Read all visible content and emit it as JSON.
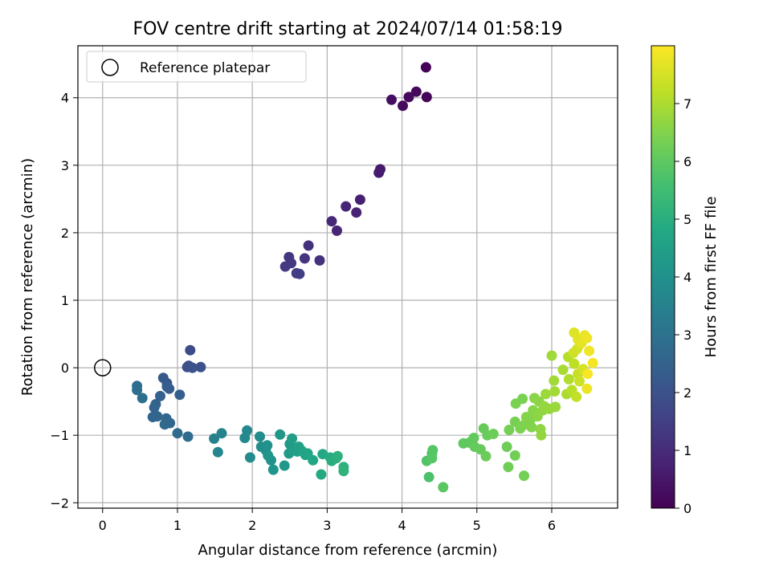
{
  "chart_data": {
    "type": "scatter",
    "title": "FOV centre drift starting at 2024/07/14 01:58:19",
    "xlabel": "Angular distance from reference (arcmin)",
    "ylabel": "Rotation from reference (arcmin)",
    "xlim": [
      -0.33,
      6.88
    ],
    "ylim": [
      -2.08,
      4.77
    ],
    "xticks": [
      0,
      1,
      2,
      3,
      4,
      5,
      6
    ],
    "yticks": [
      -2,
      -1,
      0,
      1,
      2,
      3,
      4
    ],
    "grid": true,
    "legend": {
      "placement": "top-left",
      "entries": [
        "Reference platepar"
      ]
    },
    "reference_point": {
      "x": 0,
      "y": 0
    },
    "colorbar": {
      "label": "Hours from first FF file",
      "colormap": "viridis",
      "range": [
        0,
        8.0
      ],
      "ticks": [
        0,
        1,
        2,
        3,
        4,
        5,
        6,
        7
      ]
    },
    "points": [
      [
        4.32,
        4.45,
        0.05
      ],
      [
        4.33,
        4.01,
        0.1
      ],
      [
        4.19,
        4.09,
        0.15
      ],
      [
        4.09,
        4.01,
        0.2
      ],
      [
        4.01,
        3.88,
        0.25
      ],
      [
        3.86,
        3.97,
        0.3
      ],
      [
        3.71,
        2.94,
        0.55
      ],
      [
        3.69,
        2.89,
        0.6
      ],
      [
        3.44,
        2.49,
        0.7
      ],
      [
        3.39,
        2.3,
        0.75
      ],
      [
        3.25,
        2.39,
        0.8
      ],
      [
        3.13,
        2.03,
        0.85
      ],
      [
        3.06,
        2.17,
        0.9
      ],
      [
        2.75,
        1.81,
        1.1
      ],
      [
        2.9,
        1.59,
        1.15
      ],
      [
        2.7,
        1.62,
        1.2
      ],
      [
        2.49,
        1.64,
        1.25
      ],
      [
        2.52,
        1.55,
        1.3
      ],
      [
        2.44,
        1.5,
        1.35
      ],
      [
        2.59,
        1.4,
        1.4
      ],
      [
        2.63,
        1.39,
        1.45
      ],
      [
        1.17,
        0.26,
        1.8
      ],
      [
        1.15,
        0.03,
        1.85
      ],
      [
        1.13,
        0.01,
        1.9
      ],
      [
        1.31,
        0.01,
        1.95
      ],
      [
        1.2,
        0.0,
        2.0
      ],
      [
        0.86,
        -0.23,
        2.2
      ],
      [
        0.81,
        -0.15,
        2.25
      ],
      [
        0.89,
        -0.31,
        2.3
      ],
      [
        0.86,
        -0.28,
        2.35
      ],
      [
        1.03,
        -0.4,
        2.4
      ],
      [
        0.77,
        -0.42,
        2.45
      ],
      [
        0.71,
        -0.54,
        2.5
      ],
      [
        0.69,
        -0.59,
        2.55
      ],
      [
        0.67,
        -0.73,
        2.6
      ],
      [
        0.73,
        -0.72,
        2.62
      ],
      [
        0.85,
        -0.75,
        2.65
      ],
      [
        0.9,
        -0.82,
        2.7
      ],
      [
        0.83,
        -0.84,
        2.72
      ],
      [
        1.0,
        -0.97,
        2.75
      ],
      [
        1.14,
        -1.02,
        2.8
      ],
      [
        0.46,
        -0.27,
        2.85
      ],
      [
        0.46,
        -0.33,
        2.9
      ],
      [
        0.53,
        -0.45,
        2.95
      ],
      [
        1.49,
        -1.05,
        3.5
      ],
      [
        1.59,
        -0.97,
        3.55
      ],
      [
        1.54,
        -1.25,
        3.6
      ],
      [
        1.93,
        -0.93,
        3.7
      ],
      [
        1.9,
        -1.04,
        3.75
      ],
      [
        1.97,
        -1.33,
        3.8
      ],
      [
        2.1,
        -1.02,
        3.85
      ],
      [
        2.12,
        -1.17,
        3.9
      ],
      [
        2.18,
        -1.22,
        3.95
      ],
      [
        2.2,
        -1.15,
        4.0
      ],
      [
        2.25,
        -1.37,
        4.05
      ],
      [
        2.21,
        -1.3,
        4.1
      ],
      [
        2.28,
        -1.51,
        4.15
      ],
      [
        2.37,
        -0.99,
        4.2
      ],
      [
        2.43,
        -1.45,
        4.25
      ],
      [
        2.5,
        -1.13,
        4.3
      ],
      [
        2.49,
        -1.27,
        4.35
      ],
      [
        2.55,
        -1.22,
        4.4
      ],
      [
        2.53,
        -1.05,
        4.45
      ],
      [
        2.6,
        -1.24,
        4.5
      ],
      [
        2.62,
        -1.17,
        4.55
      ],
      [
        2.66,
        -1.23,
        4.6
      ],
      [
        2.71,
        -1.29,
        4.65
      ],
      [
        2.74,
        -1.27,
        4.7
      ],
      [
        2.81,
        -1.37,
        4.75
      ],
      [
        2.94,
        -1.28,
        4.8
      ],
      [
        2.92,
        -1.58,
        4.85
      ],
      [
        3.04,
        -1.33,
        4.9
      ],
      [
        3.06,
        -1.38,
        4.95
      ],
      [
        3.12,
        -1.34,
        5.0
      ],
      [
        3.14,
        -1.31,
        5.05
      ],
      [
        3.22,
        -1.47,
        5.1
      ],
      [
        3.22,
        -1.53,
        5.15
      ],
      [
        4.36,
        -1.62,
        5.7
      ],
      [
        4.4,
        -1.27,
        5.75
      ],
      [
        4.33,
        -1.38,
        5.8
      ],
      [
        4.41,
        -1.22,
        5.85
      ],
      [
        4.4,
        -1.34,
        5.9
      ],
      [
        4.55,
        -1.77,
        5.95
      ],
      [
        4.82,
        -1.12,
        6.0
      ],
      [
        4.9,
        -1.11,
        6.02
      ],
      [
        4.96,
        -1.04,
        6.05
      ],
      [
        4.97,
        -1.17,
        6.08
      ],
      [
        5.05,
        -1.21,
        6.1
      ],
      [
        5.09,
        -0.9,
        6.12
      ],
      [
        5.14,
        -1.0,
        6.15
      ],
      [
        5.12,
        -1.31,
        6.18
      ],
      [
        5.22,
        -0.98,
        6.2
      ],
      [
        5.4,
        -1.17,
        6.22
      ],
      [
        5.42,
        -1.47,
        6.25
      ],
      [
        5.51,
        -1.3,
        6.28
      ],
      [
        5.63,
        -1.6,
        6.3
      ],
      [
        5.43,
        -0.92,
        6.32
      ],
      [
        5.51,
        -0.8,
        6.35
      ],
      [
        5.52,
        -0.53,
        6.38
      ],
      [
        5.61,
        -0.46,
        6.4
      ],
      [
        5.58,
        -0.9,
        6.42
      ],
      [
        5.64,
        -0.84,
        6.45
      ],
      [
        5.72,
        -0.76,
        6.48
      ],
      [
        5.73,
        -0.88,
        6.5
      ],
      [
        5.66,
        -0.73,
        6.52
      ],
      [
        5.75,
        -0.63,
        6.55
      ],
      [
        5.77,
        -0.45,
        6.58
      ],
      [
        5.83,
        -0.5,
        6.6
      ],
      [
        5.81,
        -0.72,
        6.62
      ],
      [
        5.85,
        -0.91,
        6.65
      ],
      [
        5.88,
        -0.63,
        6.68
      ],
      [
        5.86,
        -1.0,
        6.7
      ],
      [
        5.9,
        -0.57,
        6.72
      ],
      [
        5.97,
        -0.61,
        6.75
      ],
      [
        6.05,
        -0.58,
        6.78
      ],
      [
        5.92,
        -0.39,
        6.8
      ],
      [
        6.0,
        0.18,
        6.85
      ],
      [
        6.03,
        -0.19,
        6.88
      ],
      [
        6.04,
        -0.35,
        6.9
      ],
      [
        6.15,
        -0.03,
        6.95
      ],
      [
        6.2,
        -0.39,
        7.0
      ],
      [
        6.23,
        -0.17,
        7.05
      ],
      [
        6.22,
        0.16,
        7.1
      ],
      [
        6.27,
        -0.33,
        7.15
      ],
      [
        6.3,
        0.06,
        7.2
      ],
      [
        6.33,
        -0.43,
        7.25
      ],
      [
        6.35,
        -0.09,
        7.3
      ],
      [
        6.37,
        -0.2,
        7.35
      ],
      [
        6.29,
        0.22,
        7.4
      ],
      [
        6.34,
        0.28,
        7.45
      ],
      [
        6.42,
        -0.02,
        7.5
      ],
      [
        6.38,
        0.35,
        7.55
      ],
      [
        6.3,
        0.52,
        7.6
      ],
      [
        6.35,
        0.42,
        7.65
      ],
      [
        6.4,
        0.37,
        7.7
      ],
      [
        6.44,
        0.48,
        7.75
      ],
      [
        6.47,
        -0.31,
        7.78
      ],
      [
        6.47,
        0.44,
        7.8
      ],
      [
        6.5,
        0.25,
        7.85
      ],
      [
        6.55,
        0.07,
        7.9
      ],
      [
        6.48,
        -0.09,
        7.92
      ]
    ]
  }
}
